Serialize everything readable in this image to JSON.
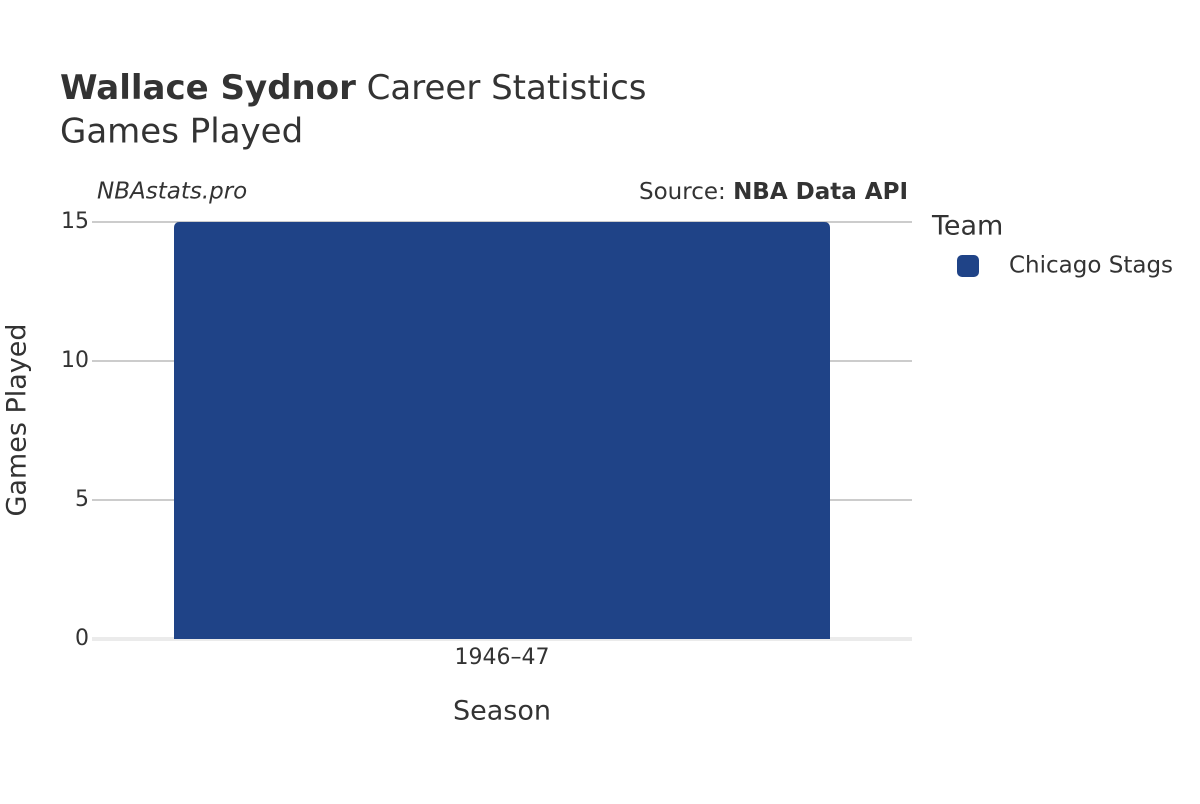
{
  "chart_data": {
    "type": "bar",
    "title_name": "Wallace Sydnor",
    "title_rest": "Career Statistics",
    "subtitle": "Games Played",
    "credit": "NBAstats.pro",
    "source_label": "Source:",
    "source": "NBA Data API",
    "x_label": "Season",
    "y_label": "Games Played",
    "legend_title": "Team",
    "categories": [
      "1946–47"
    ],
    "series": [
      {
        "name": "Chicago Stags",
        "color": "#1f4387",
        "values": [
          15
        ]
      }
    ],
    "ylim": [
      0,
      15
    ],
    "yticks": [
      0,
      5,
      10,
      15
    ],
    "grid": true
  }
}
